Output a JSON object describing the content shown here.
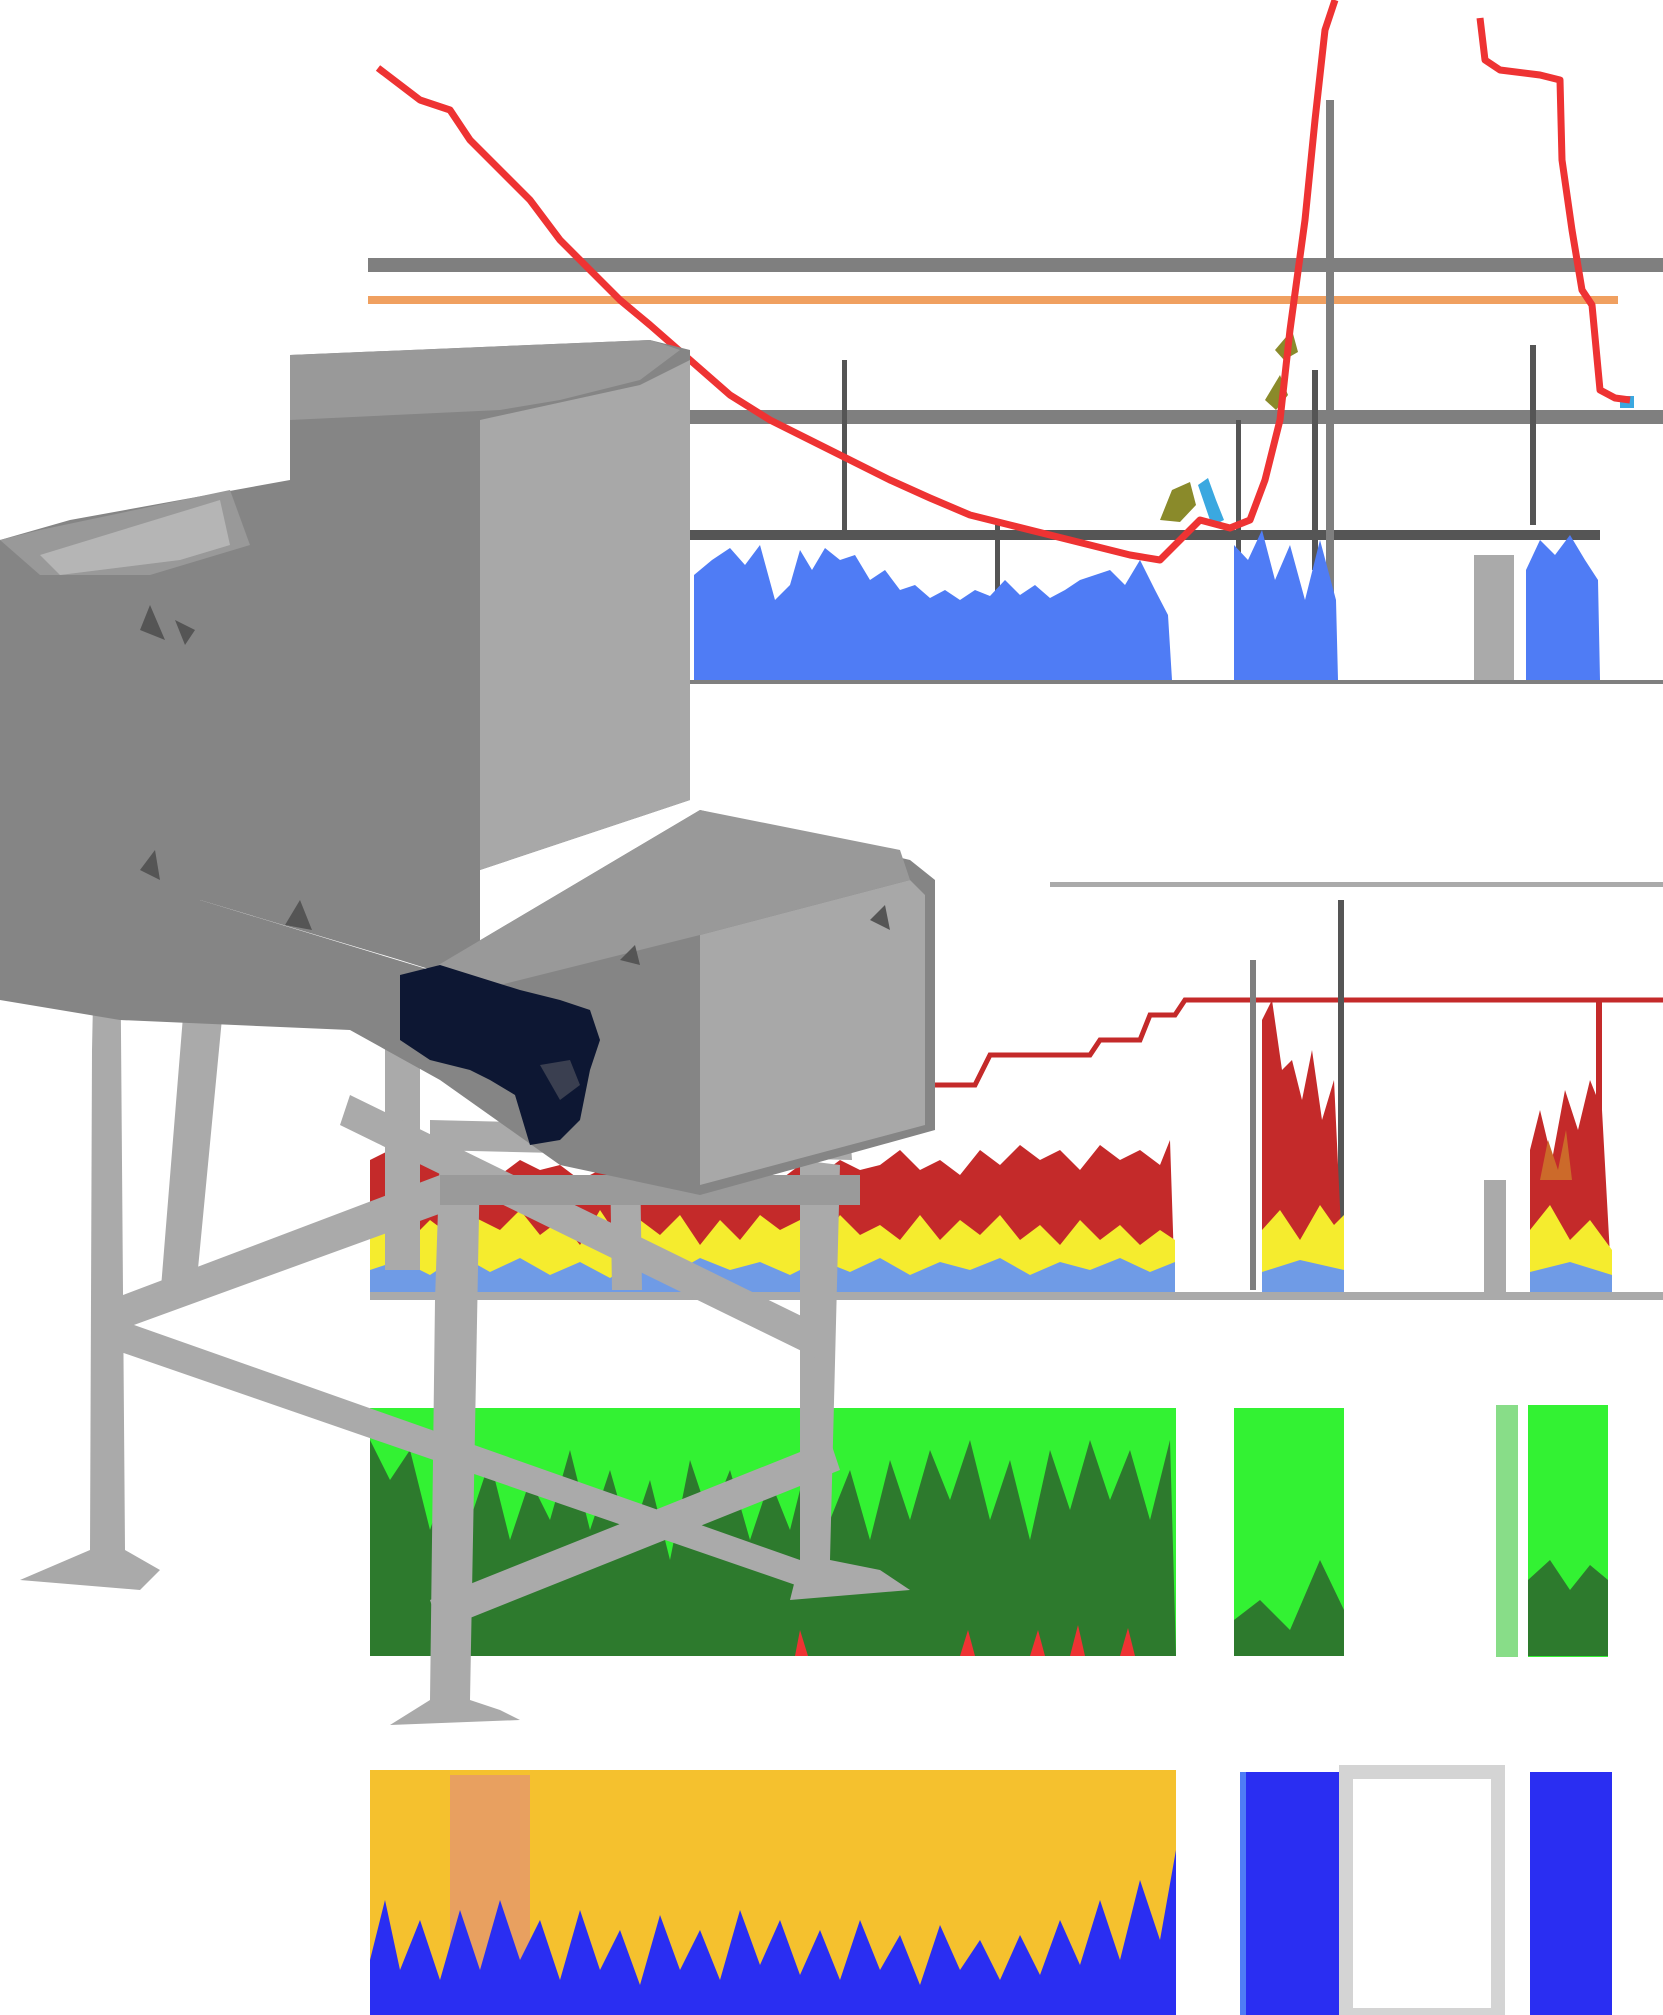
{
  "scene": {
    "description_free": true,
    "colors": {
      "background": "#ffffff",
      "machine_dark": "#858585",
      "machine_mid": "#999999",
      "machine_light": "#a8a8a8",
      "frame": "#aaaaaa",
      "opening": "#0d1733",
      "curve_red": "#ee3333",
      "line_orange": "#f0a060",
      "line_gray": "#7f7f7f",
      "line_dark": "#555555",
      "fill_blue": "#4f7cf5",
      "fill_blue_soft": "#6f9be6",
      "fill_red": "#c42a2a",
      "fill_yellow": "#f5ec2e",
      "fill_green_light": "#33f233",
      "fill_green_dark": "#2d7a2d",
      "fill_orange": "#f5c12e",
      "fill_deep_blue": "#2a2ef2",
      "fill_gray_band": "#aaaaaa",
      "box_gray": "#d4d4d4"
    }
  }
}
